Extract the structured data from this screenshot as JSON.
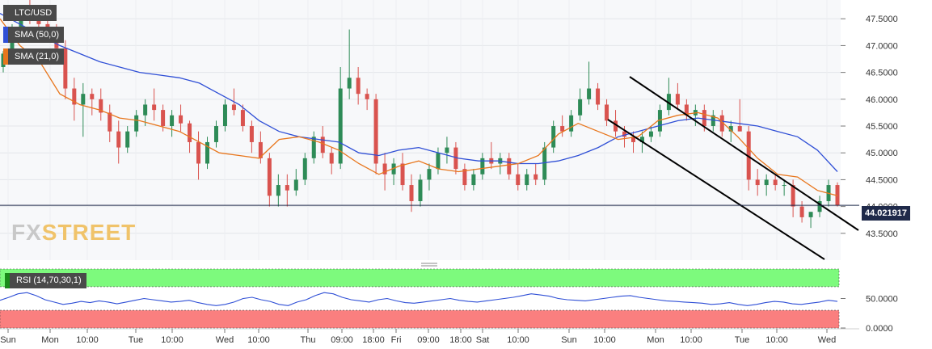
{
  "chart_data": {
    "type": "candlestick",
    "symbol": "LTC/USD",
    "last_price": "44.021917",
    "price_axis": {
      "ylim": [
        43.0,
        47.85
      ],
      "ticks": [
        "47.5000",
        "47.0000",
        "46.5000",
        "46.0000",
        "45.5000",
        "45.0000",
        "44.5000",
        "44.0000",
        "43.5000"
      ],
      "tick_values": [
        47.5,
        47.0,
        46.5,
        46.0,
        45.5,
        45.0,
        44.5,
        44.0,
        43.5
      ]
    },
    "x_ticks": [
      "Sun",
      "Mon",
      "10:00",
      "Tue",
      "10:00",
      "Wed",
      "10:00",
      "Thu",
      "09:00",
      "18:00",
      "Fri",
      "09:00",
      "18:00",
      "Sat",
      "10:00",
      "Sun",
      "10:00",
      "Mon",
      "10:00",
      "Tue",
      "10:00",
      "Wed"
    ],
    "indicators": {
      "sma50": {
        "label": "SMA (50,0)",
        "color": "#2f4fd6",
        "values": [
          47.6,
          47.4,
          47.2,
          47.0,
          46.85,
          46.7,
          46.6,
          46.5,
          46.45,
          46.4,
          46.3,
          46.1,
          45.9,
          45.6,
          45.4,
          45.3,
          45.25,
          45.2,
          45.0,
          44.95,
          45.05,
          45.1,
          45.0,
          44.9,
          44.85,
          44.85,
          44.8,
          44.8,
          44.85,
          44.95,
          45.1,
          45.3,
          45.4,
          45.5,
          45.6,
          45.65,
          45.6,
          45.55,
          45.5,
          45.4,
          45.3,
          45.05,
          44.65
        ]
      },
      "sma21": {
        "label": "SMA (21,0)",
        "color": "#e8761d",
        "values": [
          47.5,
          47.0,
          46.7,
          46.1,
          45.9,
          45.8,
          45.65,
          45.6,
          45.5,
          45.4,
          45.2,
          45.0,
          44.95,
          44.9,
          45.25,
          45.3,
          45.2,
          45.05,
          44.8,
          44.6,
          44.75,
          44.85,
          44.7,
          44.65,
          44.7,
          44.75,
          44.8,
          44.95,
          45.35,
          45.55,
          45.4,
          45.25,
          45.3,
          45.6,
          45.7,
          45.75,
          45.65,
          45.3,
          44.9,
          44.6,
          44.55,
          44.3,
          44.2
        ]
      }
    },
    "channel_color": "#000000",
    "ohlc": [
      [
        46.6,
        46.9,
        46.5,
        46.85
      ],
      [
        46.85,
        47.4,
        46.8,
        47.3
      ],
      [
        47.3,
        47.7,
        47.2,
        47.6
      ],
      [
        47.6,
        47.85,
        47.4,
        47.55
      ],
      [
        47.55,
        47.7,
        47.3,
        47.4
      ],
      [
        47.4,
        47.55,
        47.1,
        47.25
      ],
      [
        47.25,
        47.4,
        46.8,
        46.95
      ],
      [
        46.95,
        47.1,
        46.0,
        46.2
      ],
      [
        46.2,
        46.4,
        45.6,
        45.9
      ],
      [
        45.9,
        46.3,
        45.3,
        46.1
      ],
      [
        46.1,
        46.2,
        45.7,
        46.0
      ],
      [
        46.0,
        46.2,
        45.6,
        45.75
      ],
      [
        45.75,
        45.9,
        45.2,
        45.4
      ],
      [
        45.4,
        45.6,
        44.8,
        45.1
      ],
      [
        45.1,
        45.5,
        45.0,
        45.4
      ],
      [
        45.4,
        45.8,
        45.3,
        45.7
      ],
      [
        45.7,
        46.0,
        45.5,
        45.9
      ],
      [
        45.9,
        46.2,
        45.6,
        45.8
      ],
      [
        45.8,
        45.9,
        45.4,
        45.5
      ],
      [
        45.5,
        45.8,
        45.3,
        45.7
      ],
      [
        45.7,
        45.9,
        45.4,
        45.55
      ],
      [
        45.55,
        45.6,
        45.0,
        45.2
      ],
      [
        45.2,
        45.4,
        44.5,
        44.8
      ],
      [
        44.8,
        45.3,
        44.7,
        45.2
      ],
      [
        45.2,
        45.6,
        45.1,
        45.5
      ],
      [
        45.5,
        46.0,
        45.4,
        45.9
      ],
      [
        45.9,
        46.2,
        45.7,
        45.8
      ],
      [
        45.8,
        45.9,
        45.4,
        45.5
      ],
      [
        45.5,
        45.6,
        45.0,
        45.2
      ],
      [
        45.2,
        45.4,
        44.8,
        44.9
      ],
      [
        44.9,
        45.0,
        44.0,
        44.2
      ],
      [
        44.2,
        44.6,
        44.0,
        44.4
      ],
      [
        44.4,
        44.6,
        44.0,
        44.3
      ],
      [
        44.3,
        44.7,
        44.2,
        44.5
      ],
      [
        44.5,
        45.0,
        44.4,
        44.9
      ],
      [
        44.9,
        45.4,
        44.8,
        45.3
      ],
      [
        45.3,
        45.5,
        44.9,
        45.0
      ],
      [
        45.0,
        45.1,
        44.6,
        44.8
      ],
      [
        44.8,
        46.6,
        44.7,
        46.2
      ],
      [
        46.2,
        47.3,
        46.0,
        46.4
      ],
      [
        46.4,
        46.6,
        45.9,
        46.1
      ],
      [
        46.1,
        46.2,
        45.8,
        46.0
      ],
      [
        46.0,
        46.1,
        44.6,
        44.8
      ],
      [
        44.8,
        45.0,
        44.3,
        44.6
      ],
      [
        44.6,
        44.9,
        44.4,
        44.8
      ],
      [
        44.8,
        45.0,
        44.3,
        44.4
      ],
      [
        44.4,
        44.6,
        43.9,
        44.1
      ],
      [
        44.1,
        44.6,
        44.0,
        44.5
      ],
      [
        44.5,
        44.8,
        44.3,
        44.7
      ],
      [
        44.7,
        45.1,
        44.6,
        45.0
      ],
      [
        45.0,
        45.3,
        44.8,
        45.1
      ],
      [
        45.1,
        45.2,
        44.6,
        44.7
      ],
      [
        44.7,
        44.8,
        44.3,
        44.4
      ],
      [
        44.4,
        44.7,
        44.3,
        44.6
      ],
      [
        44.6,
        45.0,
        44.5,
        44.9
      ],
      [
        44.9,
        45.2,
        44.7,
        44.8
      ],
      [
        44.8,
        45.0,
        44.6,
        44.9
      ],
      [
        44.9,
        45.0,
        44.5,
        44.6
      ],
      [
        44.6,
        44.8,
        44.3,
        44.4
      ],
      [
        44.4,
        44.7,
        44.3,
        44.6
      ],
      [
        44.6,
        44.8,
        44.4,
        44.5
      ],
      [
        44.5,
        45.2,
        44.4,
        45.1
      ],
      [
        45.1,
        45.6,
        45.0,
        45.5
      ],
      [
        45.5,
        45.7,
        45.3,
        45.4
      ],
      [
        45.4,
        45.8,
        45.3,
        45.7
      ],
      [
        45.7,
        46.2,
        45.6,
        46.0
      ],
      [
        46.0,
        46.7,
        45.9,
        46.2
      ],
      [
        46.2,
        46.3,
        45.8,
        45.9
      ],
      [
        45.9,
        46.0,
        45.5,
        45.6
      ],
      [
        45.6,
        45.8,
        45.3,
        45.4
      ],
      [
        45.4,
        45.5,
        45.1,
        45.3
      ],
      [
        45.3,
        45.4,
        45.0,
        45.2
      ],
      [
        45.2,
        45.4,
        45.0,
        45.3
      ],
      [
        45.3,
        45.5,
        45.2,
        45.4
      ],
      [
        45.4,
        45.9,
        45.3,
        45.8
      ],
      [
        45.8,
        46.4,
        45.7,
        46.1
      ],
      [
        46.1,
        46.3,
        45.8,
        45.9
      ],
      [
        45.9,
        46.0,
        45.6,
        45.7
      ],
      [
        45.7,
        45.9,
        45.5,
        45.8
      ],
      [
        45.8,
        45.9,
        45.4,
        45.5
      ],
      [
        45.5,
        45.8,
        45.4,
        45.7
      ],
      [
        45.7,
        45.8,
        45.3,
        45.4
      ],
      [
        45.4,
        45.6,
        45.2,
        45.5
      ],
      [
        45.5,
        46.0,
        45.4,
        45.4
      ],
      [
        45.4,
        45.5,
        44.3,
        44.5
      ],
      [
        44.5,
        44.7,
        44.2,
        44.4
      ],
      [
        44.4,
        44.6,
        44.2,
        44.5
      ],
      [
        44.5,
        44.6,
        44.3,
        44.4
      ],
      [
        44.4,
        44.5,
        44.2,
        44.4
      ],
      [
        44.4,
        44.5,
        43.8,
        44.0
      ],
      [
        44.0,
        44.1,
        43.7,
        43.8
      ],
      [
        43.8,
        43.9,
        43.6,
        43.9
      ],
      [
        43.9,
        44.2,
        43.8,
        44.1
      ],
      [
        44.1,
        44.5,
        44.0,
        44.4
      ],
      [
        44.4,
        44.45,
        44.0,
        44.02
      ]
    ]
  },
  "rsi": {
    "label": "RSI (14,70,30,1)",
    "ticks": [
      "50.0000",
      "0.0000"
    ],
    "tick_values": [
      50,
      0
    ],
    "upper": 70,
    "lower": 30,
    "line_color": "#2f4fd6",
    "upper_zone_color": "#7dfa7d",
    "lower_zone_color": "#fa7f7f",
    "values": [
      47,
      52,
      58,
      60,
      55,
      48,
      44,
      40,
      42,
      45,
      43,
      46,
      44,
      41,
      44,
      47,
      50,
      48,
      46,
      44,
      45,
      47,
      43,
      40,
      38,
      40,
      44,
      50,
      52,
      48,
      45,
      40,
      38,
      44,
      48,
      55,
      60,
      58,
      52,
      48,
      46,
      44,
      48,
      50,
      46,
      43,
      42,
      44,
      46,
      48,
      50,
      47,
      45,
      44,
      46,
      48,
      50,
      52,
      55,
      58,
      56,
      54,
      50,
      48,
      47,
      46,
      48,
      50,
      52,
      54,
      55,
      52,
      50,
      48,
      46,
      45,
      44,
      43,
      42,
      40,
      41,
      43,
      40,
      38,
      40,
      43,
      45,
      44,
      41,
      40,
      42,
      44,
      47,
      45
    ]
  }
}
